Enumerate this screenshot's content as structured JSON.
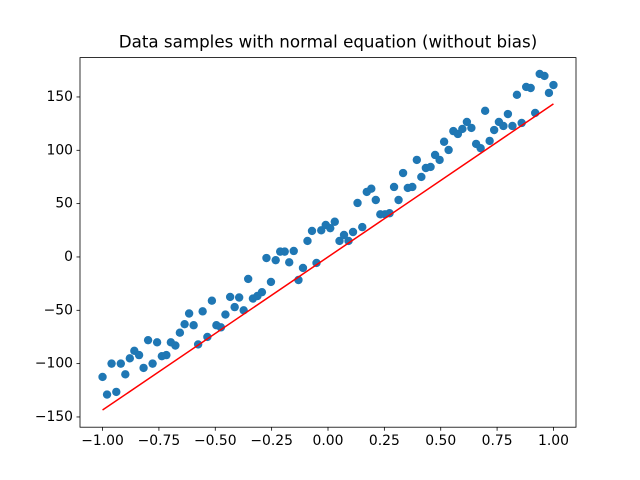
{
  "chart_data": {
    "type": "scatter",
    "title": "Data samples with normal equation (without bias)",
    "xlim": [
      -1.1,
      1.1
    ],
    "ylim": [
      -159.6,
      186.9
    ],
    "xticks": [
      {
        "value": -1,
        "label": "−1.00"
      },
      {
        "value": -0.75,
        "label": "−0.75"
      },
      {
        "value": -0.5,
        "label": "−0.50"
      },
      {
        "value": -0.25,
        "label": "−0.25"
      },
      {
        "value": 0,
        "label": "0.00"
      },
      {
        "value": 0.25,
        "label": "0.25"
      },
      {
        "value": 0.5,
        "label": "0.50"
      },
      {
        "value": 0.75,
        "label": "0.75"
      },
      {
        "value": 1,
        "label": "1.00"
      }
    ],
    "yticks": [
      {
        "value": -150,
        "label": "−150"
      },
      {
        "value": -100,
        "label": "−100"
      },
      {
        "value": -50,
        "label": "−50"
      },
      0,
      50,
      100,
      150
    ],
    "series": [
      {
        "type": "scatter",
        "color": "#1f77b4",
        "x": [
          -1,
          -0.98,
          -0.96,
          -0.939,
          -0.919,
          -0.899,
          -0.879,
          -0.859,
          -0.838,
          -0.818,
          -0.798,
          -0.778,
          -0.758,
          -0.737,
          -0.717,
          -0.697,
          -0.677,
          -0.657,
          -0.636,
          -0.616,
          -0.596,
          -0.576,
          -0.556,
          -0.535,
          -0.515,
          -0.495,
          -0.475,
          -0.455,
          -0.434,
          -0.414,
          -0.394,
          -0.374,
          -0.354,
          -0.333,
          -0.313,
          -0.293,
          -0.273,
          -0.253,
          -0.232,
          -0.212,
          -0.192,
          -0.172,
          -0.152,
          -0.131,
          -0.111,
          -0.091,
          -0.071,
          -0.051,
          -0.03,
          -0.01,
          0.01,
          0.03,
          0.051,
          0.071,
          0.091,
          0.111,
          0.131,
          0.152,
          0.172,
          0.192,
          0.212,
          0.232,
          0.253,
          0.273,
          0.293,
          0.313,
          0.333,
          0.354,
          0.374,
          0.394,
          0.414,
          0.434,
          0.455,
          0.475,
          0.495,
          0.515,
          0.535,
          0.556,
          0.576,
          0.596,
          0.616,
          0.636,
          0.657,
          0.677,
          0.697,
          0.717,
          0.737,
          0.758,
          0.778,
          0.798,
          0.818,
          0.838,
          0.859,
          0.879,
          0.899,
          0.919,
          0.939,
          0.96,
          0.98,
          1
        ],
        "values": [
          -112.5,
          -129,
          -100,
          -126.5,
          -100,
          -110,
          -95,
          -88,
          -92,
          -104,
          -78,
          -100,
          -80,
          -93,
          -92,
          -80,
          -83,
          -71,
          -63,
          -53,
          -64,
          -82,
          -51,
          -75,
          -41,
          -64,
          -66,
          -54,
          -37.5,
          -47,
          -38,
          -50,
          -20.6,
          -39,
          -36.6,
          -33,
          -1,
          -23.4,
          -3,
          5,
          5,
          -5,
          5.6,
          -21.6,
          -10.3,
          15,
          24.4,
          -5.6,
          25,
          30,
          27,
          33,
          15,
          20.6,
          15,
          23.4,
          50.6,
          28,
          61,
          64,
          53.4,
          40,
          40,
          41,
          65.6,
          53.4,
          78.7,
          64.7,
          65.6,
          91,
          75,
          83.4,
          84.4,
          95.6,
          91,
          108,
          100.3,
          118,
          115.3,
          120,
          126.6,
          121,
          106,
          102,
          137,
          108.8,
          119,
          126.6,
          122.8,
          134,
          122.8,
          152,
          125.6,
          159.4,
          158.4,
          135,
          171.6,
          169.7,
          153.8,
          161.2
        ]
      },
      {
        "type": "line",
        "color": "#ff0000",
        "x": [
          -1,
          1
        ],
        "values": [
          -143.5,
          143.5
        ]
      }
    ]
  }
}
